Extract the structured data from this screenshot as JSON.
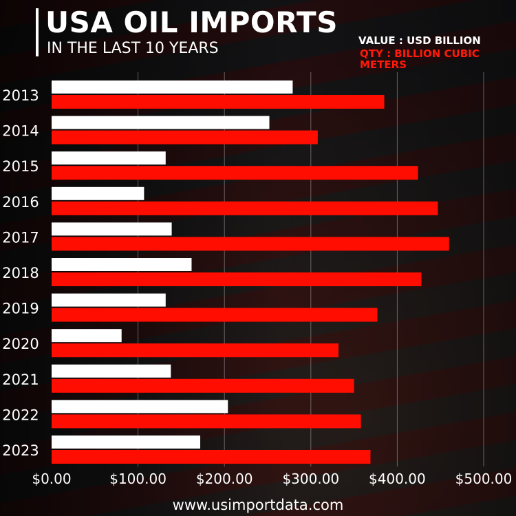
{
  "header": {
    "title": "USA OIL IMPORTS",
    "subtitle": "IN THE LAST 10 YEARS"
  },
  "legend": {
    "value_label": "VALUE : USD BILLION",
    "qty_label": "QTY :  BILLION CUBIC METERS"
  },
  "footer": {
    "website": "www.usimportdata.com"
  },
  "colors": {
    "value": "#ffffff",
    "qty": "#ff0d00"
  },
  "chart_data": {
    "type": "bar",
    "orientation": "horizontal",
    "categories": [
      "2013",
      "2014",
      "2015",
      "2016",
      "2017",
      "2018",
      "2019",
      "2020",
      "2021",
      "2022",
      "2023"
    ],
    "series": [
      {
        "name": "VALUE : USD BILLION",
        "values": [
          279,
          252,
          132,
          107,
          139,
          162,
          132,
          81,
          138,
          204,
          172
        ]
      },
      {
        "name": "QTY :  BILLION CUBIC METERS",
        "values": [
          385,
          308,
          424,
          447,
          460,
          428,
          377,
          332,
          350,
          358,
          369
        ]
      }
    ],
    "xlim": [
      0,
      500
    ],
    "xticks": [
      "$0.00",
      "$100.00",
      "$200.00",
      "$300.00",
      "$400.00",
      "$500.00"
    ],
    "grid": true,
    "legend": "top-right"
  }
}
